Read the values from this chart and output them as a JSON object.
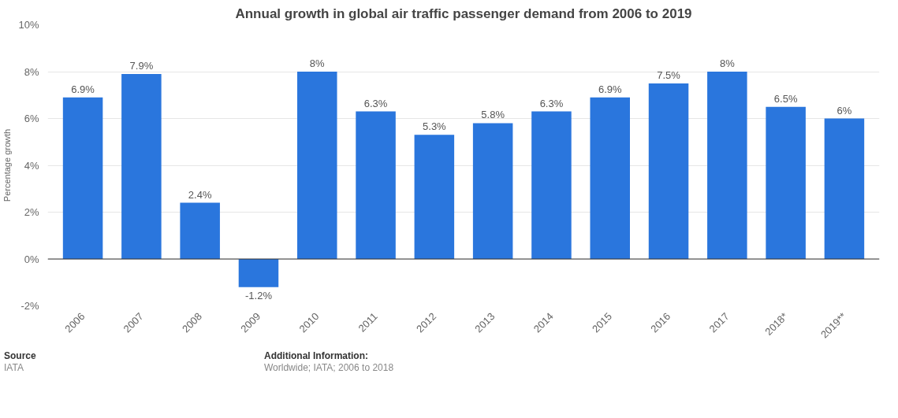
{
  "chart_data": {
    "type": "bar",
    "title": "Annual growth in global air traffic passenger demand from 2006 to 2019",
    "ylabel": "Percentage growth",
    "categories": [
      "2006",
      "2007",
      "2008",
      "2009",
      "2010",
      "2011",
      "2012",
      "2013",
      "2014",
      "2015",
      "2016",
      "2017",
      "2018*",
      "2019**"
    ],
    "values": [
      6.9,
      7.9,
      2.4,
      -1.2,
      8,
      6.3,
      5.3,
      5.8,
      6.3,
      6.9,
      7.5,
      8,
      6.5,
      6
    ],
    "value_labels": [
      "6.9%",
      "7.9%",
      "2.4%",
      "-1.2%",
      "8%",
      "6.3%",
      "5.3%",
      "5.8%",
      "6.3%",
      "6.9%",
      "7.5%",
      "8%",
      "6.5%",
      "6%"
    ],
    "color": "#2a76dd",
    "ylim": [
      -2,
      10
    ],
    "yticks": [
      {
        "value": -2,
        "label": "-2%"
      },
      {
        "value": 0,
        "label": "0%"
      },
      {
        "value": 2,
        "label": "2%"
      },
      {
        "value": 4,
        "label": "4%"
      },
      {
        "value": 6,
        "label": "6%"
      },
      {
        "value": 8,
        "label": "8%"
      },
      {
        "value": 10,
        "label": "10%"
      }
    ],
    "grid": "y",
    "annotations": [
      "Source",
      "IATA",
      "Additional Information:",
      "Worldwide; IATA; 2006 to 2018"
    ]
  }
}
